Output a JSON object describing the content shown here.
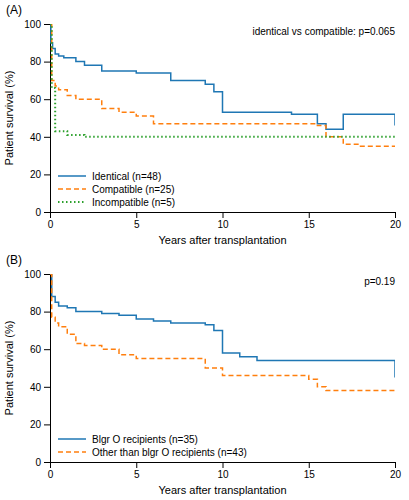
{
  "chart_data": [
    {
      "type": "step",
      "title": "(A)",
      "annotation": "identical vs compatible: p=0.065",
      "xlabel": "Years after transplantation",
      "ylabel": "Patient survival (%)",
      "xlim": [
        0,
        20
      ],
      "ylim": [
        0,
        100
      ],
      "xticks": [
        0,
        5,
        10,
        15,
        20
      ],
      "yticks": [
        0,
        20,
        40,
        60,
        80,
        100
      ],
      "legend": "lower left",
      "series": [
        {
          "name": "Identical (n=48)",
          "line_style": "solid",
          "x": [
            0,
            0.05,
            0.15,
            0.3,
            0.5,
            0.8,
            1.0,
            1.5,
            2.0,
            3.0,
            4.0,
            5.0,
            6.0,
            7.0,
            8.0,
            9.0,
            9.5,
            10.0,
            11.0,
            12.0,
            13.0,
            14.0,
            15.0,
            15.5,
            16.0,
            17.0,
            19.0,
            20.0
          ],
          "values": [
            100,
            90,
            87,
            84,
            83,
            82,
            82,
            80,
            78,
            75,
            75,
            74,
            74,
            70,
            70,
            68,
            64,
            53,
            53,
            53,
            53,
            52,
            52,
            47,
            44,
            52,
            52,
            46
          ]
        },
        {
          "name": "Compatible (n=25)",
          "line_style": "dashed",
          "x": [
            0,
            0.1,
            0.3,
            0.5,
            1.0,
            1.5,
            2.0,
            3.0,
            4.0,
            5.0,
            6.0,
            7.0,
            8.0,
            9.0,
            10.0,
            15.0,
            15.5,
            16.0,
            17.0,
            18.0,
            20.0
          ],
          "values": [
            100,
            70,
            67,
            65,
            62,
            60,
            60,
            55,
            53,
            51,
            47,
            47,
            47,
            47,
            47,
            47,
            46,
            40,
            36,
            35,
            35
          ]
        },
        {
          "name": "Incompatible (n=5)",
          "line_style": "dotted",
          "x": [
            0,
            0.1,
            0.3,
            1.0,
            2.0,
            10.0,
            20.0
          ],
          "values": [
            100,
            66,
            43,
            41,
            40,
            40,
            40
          ]
        }
      ]
    },
    {
      "type": "step",
      "title": "(B)",
      "annotation": "p=0.19",
      "xlabel": "Years after transplantation",
      "ylabel": "Patient survival (%)",
      "xlim": [
        0,
        20
      ],
      "ylim": [
        0,
        100
      ],
      "xticks": [
        0,
        5,
        10,
        15,
        20
      ],
      "yticks": [
        0,
        20,
        40,
        60,
        80,
        100
      ],
      "legend": "lower left",
      "series": [
        {
          "name": "Blgr O recipients (n=35)",
          "line_style": "solid",
          "x": [
            0,
            0.1,
            0.3,
            0.5,
            1.0,
            1.5,
            2.0,
            3.0,
            4.0,
            5.0,
            6.0,
            7.0,
            8.0,
            9.0,
            9.5,
            10.0,
            11.0,
            12.0,
            13.0,
            14.0,
            15.0,
            16.0,
            19.0,
            20.0
          ],
          "values": [
            100,
            88,
            85,
            83,
            82,
            80,
            80,
            79,
            78,
            76,
            75,
            74,
            74,
            73,
            70,
            58,
            56,
            54,
            54,
            54,
            54,
            54,
            54,
            45
          ]
        },
        {
          "name": "Other than blgr O recipients (n=43)",
          "line_style": "dashed",
          "x": [
            0,
            0.1,
            0.3,
            0.5,
            1.0,
            1.5,
            2.0,
            3.0,
            4.0,
            5.0,
            6.0,
            7.0,
            8.0,
            9.0,
            10.0,
            11.0,
            12.0,
            13.0,
            14.0,
            15.0,
            15.5,
            16.0,
            17.0,
            18.0,
            20.0
          ],
          "values": [
            100,
            77,
            74,
            72,
            68,
            63,
            62,
            60,
            57,
            55,
            55,
            55,
            55,
            50,
            46,
            46,
            46,
            46,
            46,
            44,
            40,
            38,
            38,
            38,
            38
          ]
        }
      ]
    }
  ]
}
